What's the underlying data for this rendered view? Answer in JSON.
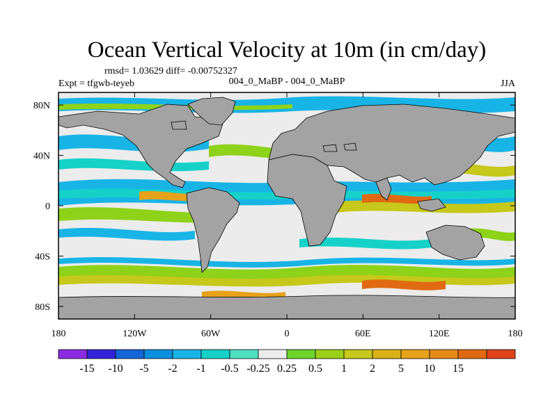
{
  "title": "Ocean Vertical Velocity at 10m (in cm/day)",
  "stats_line": "rmsd= 1.03629  diff= -0.00752327",
  "experiment_label": "Expt = tfgwb-teyeb",
  "comparison_label": "004_0_MaBP - 004_0_MaBP",
  "season": "JJA",
  "colors": {
    "land": "#a3a3a3",
    "near_zero": "#ececec",
    "ocean_field": [
      "#19b4e6",
      "#16d1c8",
      "#8ed21a",
      "#c6c81b",
      "#e6a21a",
      "#e06a12"
    ]
  },
  "map": {
    "lat_ticks": [
      "80N",
      "40N",
      "0",
      "40S",
      "80S"
    ],
    "lon_ticks": [
      "180",
      "120W",
      "60W",
      "0",
      "60E",
      "120E",
      "180"
    ]
  },
  "colorbar": {
    "colors": [
      "#8a2be2",
      "#3223d9",
      "#1565d8",
      "#0d8fdf",
      "#19b4e6",
      "#16d1c8",
      "#4fe0c0",
      "#ececec",
      "#6cd42a",
      "#9ccf18",
      "#c6c81b",
      "#d9b216",
      "#e6a21a",
      "#e68a1a",
      "#e06a12",
      "#e0421a"
    ],
    "labels": [
      "-15",
      "-10",
      "-5",
      "-2",
      "-1",
      "-0.5",
      "-0.25",
      "0.25",
      "0.5",
      "1",
      "2",
      "5",
      "10",
      "15"
    ]
  }
}
